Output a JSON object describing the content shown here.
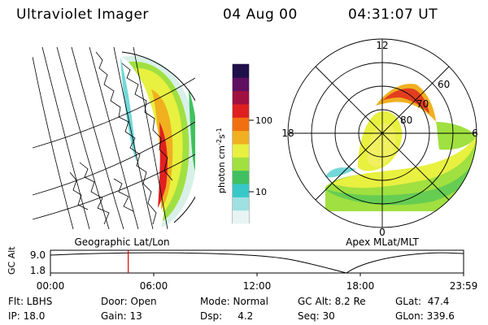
{
  "header": {
    "instrument": "Ultraviolet Imager",
    "date": "04 Aug 00",
    "time": "04:31:07 UT"
  },
  "left_panel": {
    "caption": "Geographic Lat/Lon"
  },
  "right_panel": {
    "caption": "Apex MLat/MLT",
    "mlt_labels": [
      "12",
      "18",
      "0",
      "6"
    ],
    "lat_labels": [
      "60",
      "70",
      "80"
    ]
  },
  "colorbar": {
    "unit_label": "photon cm",
    "unit_sup1": "-2",
    "unit_mid": "s",
    "unit_sup2": "-1",
    "ticks": [
      "100",
      "10"
    ],
    "scale": "log",
    "colors": [
      "#e8f4f4",
      "#9fe0e0",
      "#38c8c8",
      "#40c060",
      "#a0e040",
      "#e8f040",
      "#f0b020",
      "#f07010",
      "#e02020",
      "#a01040",
      "#601060",
      "#20104a"
    ]
  },
  "timeline": {
    "ylabel": "GC Alt",
    "y_ticks": [
      "9.0",
      "1.8"
    ],
    "x_ticks": [
      "00:00",
      "06:00",
      "12:00",
      "18:00",
      "23:59"
    ],
    "marker_hours": 4.52,
    "marker_color": "#e00000"
  },
  "info": {
    "flt": "Flt: LBHS",
    "ip": "IP: 18.0",
    "door": "Door: Open",
    "gain": "Gain: 13",
    "mode": "Mode: Normal",
    "dsp": "Dsp:     4.2",
    "gcalt": "GC Alt: 8.2 Re",
    "seq": "Seq: 30",
    "glat": "GLat:  47.4",
    "glon": "GLon: 339.6"
  }
}
